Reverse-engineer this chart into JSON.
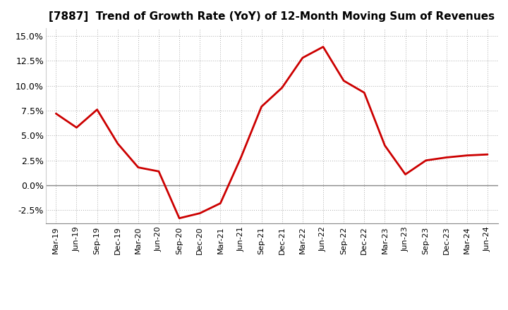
{
  "title": "[7887]  Trend of Growth Rate (YoY) of 12-Month Moving Sum of Revenues",
  "line_color": "#cc0000",
  "line_width": 2.0,
  "background_color": "#ffffff",
  "grid_color": "#aaaaaa",
  "ylim": [
    -0.038,
    0.158
  ],
  "yticks": [
    -0.025,
    0.0,
    0.025,
    0.05,
    0.075,
    0.1,
    0.125,
    0.15
  ],
  "data": [
    [
      "Mar-19",
      0.072
    ],
    [
      "Jun-19",
      0.058
    ],
    [
      "Sep-19",
      0.076
    ],
    [
      "Dec-19",
      0.042
    ],
    [
      "Mar-20",
      0.018
    ],
    [
      "Jun-20",
      0.014
    ],
    [
      "Sep-20",
      -0.033
    ],
    [
      "Dec-20",
      -0.028
    ],
    [
      "Mar-21",
      -0.018
    ],
    [
      "Jun-21",
      0.028
    ],
    [
      "Sep-21",
      0.079
    ],
    [
      "Dec-21",
      0.098
    ],
    [
      "Mar-22",
      0.128
    ],
    [
      "Jun-22",
      0.139
    ],
    [
      "Sep-22",
      0.105
    ],
    [
      "Dec-22",
      0.093
    ],
    [
      "Mar-23",
      0.04
    ],
    [
      "Jun-23",
      0.011
    ],
    [
      "Sep-23",
      0.025
    ],
    [
      "Dec-23",
      0.028
    ],
    [
      "Mar-24",
      0.03
    ],
    [
      "Jun-24",
      0.031
    ]
  ],
  "xtick_labels": [
    "Mar-19",
    "Jun-19",
    "Sep-19",
    "Dec-19",
    "Mar-20",
    "Jun-20",
    "Sep-20",
    "Dec-20",
    "Mar-21",
    "Jun-21",
    "Sep-21",
    "Dec-21",
    "Mar-22",
    "Jun-22",
    "Sep-22",
    "Dec-22",
    "Mar-23",
    "Jun-23",
    "Sep-23",
    "Dec-23",
    "Mar-24",
    "Jun-24"
  ],
  "title_fontsize": 11,
  "tick_fontsize": 9,
  "xtick_fontsize": 8
}
